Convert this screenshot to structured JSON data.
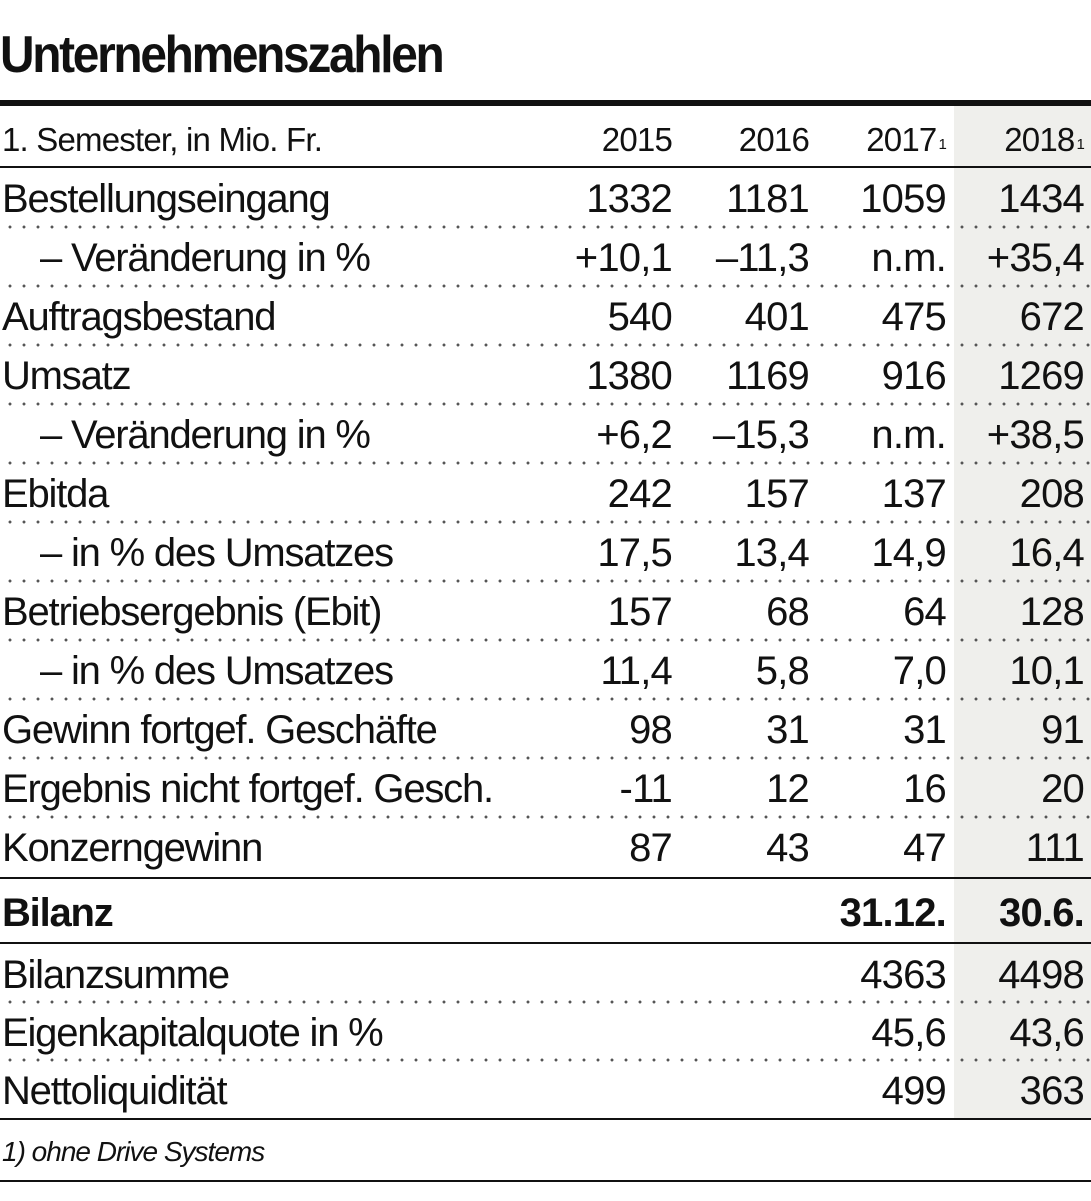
{
  "title": "Unternehmenszahlen",
  "header": {
    "label": "1. Semester, in Mio. Fr.",
    "years": [
      "2015",
      "2016",
      "2017",
      "2018"
    ],
    "footnote_marks": [
      "",
      "",
      "1",
      "1"
    ]
  },
  "rows": [
    {
      "label": "Bestellungseingang",
      "values": [
        "1332",
        "1181",
        "1059",
        "1434"
      ]
    },
    {
      "label": "– Veränderung in %",
      "values": [
        "+10,1",
        "–11,3",
        "n.m.",
        "+35,4"
      ]
    },
    {
      "label": "Auftragsbestand",
      "values": [
        "540",
        "401",
        "475",
        "672"
      ]
    },
    {
      "label": "Umsatz",
      "values": [
        "1380",
        "1169",
        "916",
        "1269"
      ]
    },
    {
      "label": "– Veränderung in %",
      "values": [
        "+6,2",
        "–15,3",
        "n.m.",
        "+38,5"
      ]
    },
    {
      "label": "Ebitda",
      "values": [
        "242",
        "157",
        "137",
        "208"
      ]
    },
    {
      "label": "– in % des Umsatzes",
      "values": [
        "17,5",
        "13,4",
        "14,9",
        "16,4"
      ]
    },
    {
      "label": "Betriebsergebnis (Ebit)",
      "values": [
        "157",
        "68",
        "64",
        "128"
      ]
    },
    {
      "label": "– in % des Umsatzes",
      "values": [
        "11,4",
        "5,8",
        "7,0",
        "10,1"
      ]
    },
    {
      "label": "Gewinn fortgef. Geschäfte",
      "values": [
        "98",
        "31",
        "31",
        "91"
      ]
    },
    {
      "label": "Ergebnis nicht fortgef. Gesch.",
      "values": [
        "-11",
        "12",
        "16",
        "20"
      ]
    },
    {
      "label": "Konzerngewinn",
      "values": [
        "87",
        "43",
        "47",
        "111"
      ]
    }
  ],
  "bilanz": {
    "label": "Bilanz",
    "dates": [
      "31.12.",
      "30.6."
    ],
    "rows": [
      {
        "label": "Bilanzsumme",
        "values": [
          "4363",
          "4498"
        ]
      },
      {
        "label": "Eigenkapitalquote in %",
        "values": [
          "45,6",
          "43,6"
        ]
      },
      {
        "label": "Nettoliquidität",
        "values": [
          "499",
          "363"
        ]
      }
    ]
  },
  "footnote": "1) ohne Drive Systems",
  "colors": {
    "text": "#111111",
    "shade": "#efefec"
  }
}
